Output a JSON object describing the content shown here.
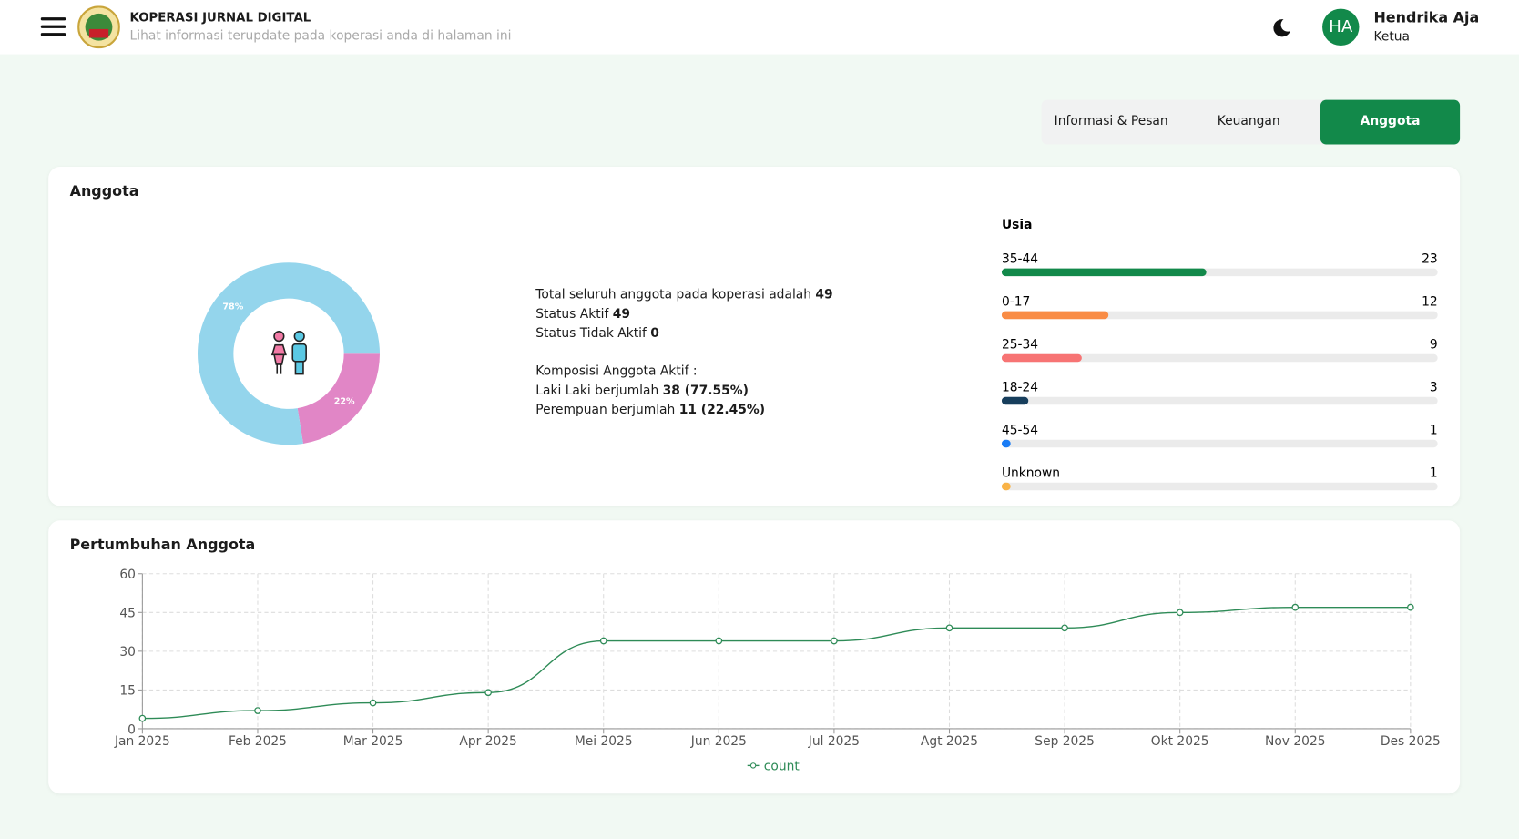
{
  "header": {
    "title": "KOPERASI JURNAL DIGITAL",
    "subtitle": "Lihat informasi terupdate pada koperasi anda di halaman ini"
  },
  "user": {
    "initials": "HA",
    "name": "Hendrika Aja",
    "role": "Ketua"
  },
  "tabs": [
    {
      "label": "Informasi & Pesan",
      "active": false
    },
    {
      "label": "Keuangan",
      "active": false
    },
    {
      "label": "Anggota",
      "active": true
    }
  ],
  "members": {
    "title": "Anggota",
    "summary": {
      "total_label": "Total seluruh anggota pada koperasi adalah",
      "total": 49,
      "active_label": "Status Aktif",
      "active": 49,
      "inactive_label": "Status Tidak Aktif",
      "inactive": 0,
      "composition_title": "Komposisi Anggota Aktif :",
      "male_label": "Laki Laki berjumlah",
      "male": "38 (77.55%)",
      "female_label": "Perempuan berjumlah",
      "female": "11 (22.45%)"
    }
  },
  "growth_title": "Pertumbuhan Anggota",
  "chart_data": [
    {
      "type": "donut",
      "values": [
        22.45,
        77.55
      ],
      "value_labels": [
        "22%",
        "78%"
      ],
      "colors": [
        "#e186c6",
        "#94d5ec"
      ]
    },
    {
      "type": "hbar",
      "title": "Usia",
      "categories": [
        "35-44",
        "0-17",
        "25-34",
        "18-24",
        "45-54",
        "Unknown"
      ],
      "values": [
        23,
        12,
        9,
        3,
        1,
        1
      ],
      "colors": [
        "#12894a",
        "#f98c45",
        "#f77474",
        "#173e5c",
        "#1a7cf5",
        "#f9b347"
      ],
      "xlim": [
        0,
        49
      ]
    },
    {
      "type": "line",
      "categories": [
        "Jan 2025",
        "Feb 2025",
        "Mar 2025",
        "Apr 2025",
        "Mei 2025",
        "Jun 2025",
        "Jul 2025",
        "Agt 2025",
        "Sep 2025",
        "Okt 2025",
        "Nov 2025",
        "Des 2025"
      ],
      "series": [
        {
          "name": "count",
          "color": "#2e8b57",
          "values": [
            4,
            7,
            10,
            14,
            34,
            34,
            34,
            39,
            39,
            45,
            47,
            47
          ]
        }
      ],
      "ylim": [
        0,
        60
      ],
      "yticks": [
        0,
        15,
        30,
        45,
        60
      ],
      "grid": true
    }
  ]
}
